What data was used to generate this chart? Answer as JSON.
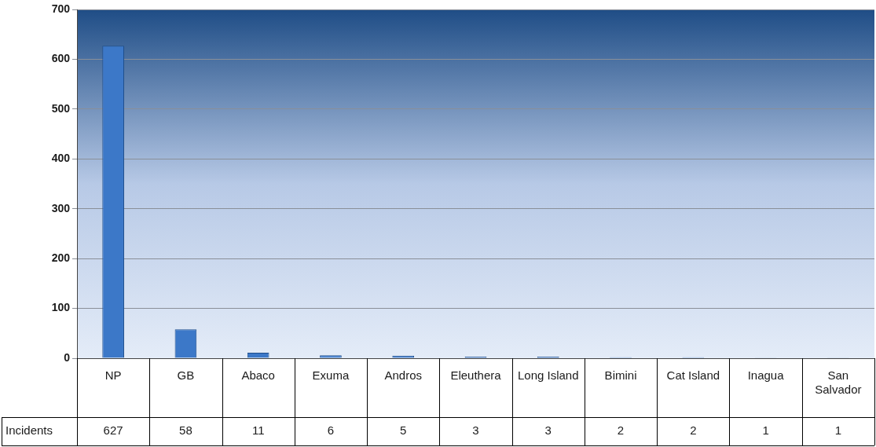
{
  "chart_data": {
    "type": "bar",
    "categories": [
      "NP",
      "GB",
      "Abaco",
      "Exuma",
      "Andros",
      "Eleuthera",
      "Long Island",
      "Bimini",
      "Cat Island",
      "Inagua",
      "San Salvador"
    ],
    "series": [
      {
        "name": "Incidents",
        "color": "#3c78c8",
        "values": [
          627,
          58,
          11,
          6,
          5,
          3,
          3,
          2,
          2,
          1,
          1
        ]
      }
    ],
    "ylim": [
      0,
      700
    ],
    "yticks": [
      0,
      100,
      200,
      300,
      400,
      500,
      600,
      700
    ],
    "grid": "y",
    "legend": false,
    "data_labels": true
  }
}
